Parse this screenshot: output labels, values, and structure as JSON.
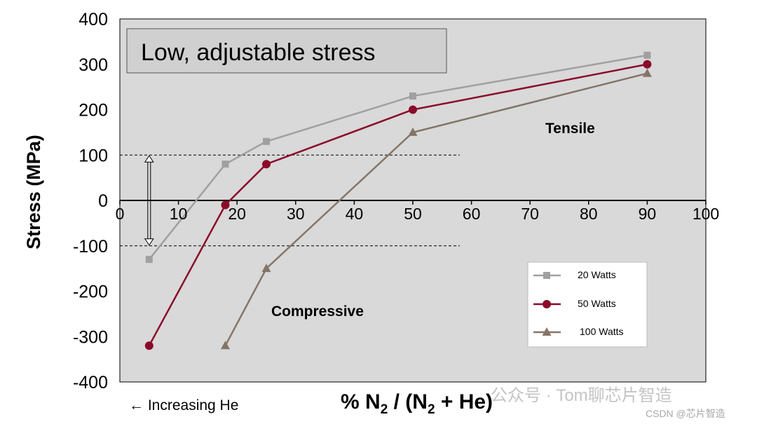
{
  "chart_data": {
    "type": "line",
    "title": "",
    "xlabel": "% N2 / (N2 + He)",
    "xlabel_parts": {
      "a": "% N",
      "sub1": "2",
      "b": " / (N",
      "sub2": "2",
      "c": " + He)"
    },
    "ylabel": "Stress (MPa)",
    "xlim": [
      0,
      100
    ],
    "ylim": [
      -400,
      400
    ],
    "x_ticks": [
      0,
      10,
      20,
      30,
      40,
      50,
      60,
      70,
      80,
      90,
      100
    ],
    "y_ticks": [
      400,
      300,
      200,
      100,
      0,
      -100,
      -200,
      -300,
      -400
    ],
    "grid": false,
    "legend_position": "bottom-right",
    "series": [
      {
        "name": "20 Watts",
        "marker": "square",
        "color": "#a0a0a0",
        "x": [
          5,
          18,
          25,
          50,
          90
        ],
        "y": [
          -130,
          80,
          130,
          230,
          320
        ]
      },
      {
        "name": "50 Watts",
        "marker": "circle",
        "color": "#8b0a2a",
        "x": [
          5,
          18,
          25,
          50,
          90
        ],
        "y": [
          -320,
          -10,
          80,
          200,
          300
        ]
      },
      {
        "name": "100 Watts",
        "marker": "triangle",
        "color": "#857567",
        "x": [
          18,
          25,
          50,
          90
        ],
        "y": [
          -320,
          -150,
          150,
          280
        ]
      }
    ],
    "annotations": {
      "callout": "Low, adjustable stress",
      "tensile": "Tensile",
      "compressive": "Compressive",
      "increasing_he": "← Increasing He",
      "reference_lines": [
        100,
        -100
      ],
      "reference_line_xmax": 58,
      "arrow_x": 5
    }
  },
  "watermark": {
    "main": "公众号 · Tom聊芯片智造",
    "small": "CSDN @芯片智造"
  },
  "colors": {
    "plot_background": "#d9d9d9",
    "callout_background": "#d0d0d0",
    "axis": "#000000"
  }
}
